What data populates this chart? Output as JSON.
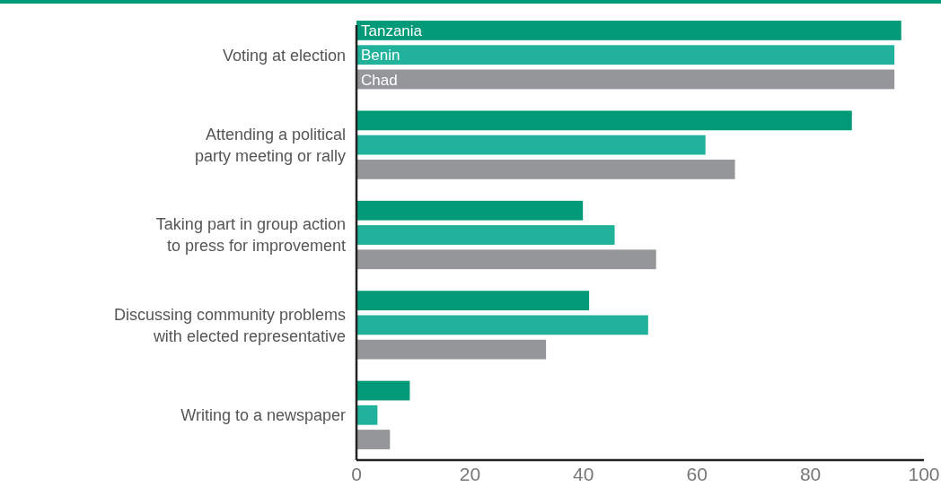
{
  "chart_data": {
    "type": "bar",
    "orientation": "horizontal",
    "categories": [
      "Voting at election",
      "Attending a political party meeting or rally",
      "Taking part in group action to press for improvement",
      "Discussing community problems with elected representative",
      "Writing to a newspaper"
    ],
    "series": [
      {
        "name": "Tanzania",
        "color": "#009a78",
        "values": [
          96,
          87.3,
          39.9,
          41,
          9.4
        ]
      },
      {
        "name": "Benin",
        "color": "#20b29a",
        "values": [
          94.8,
          61.5,
          45.5,
          51.4,
          3.7
        ]
      },
      {
        "name": "Chad",
        "color": "#959699",
        "values": [
          94.8,
          66.7,
          52.8,
          33.4,
          5.9
        ]
      }
    ],
    "xlim": [
      0,
      100
    ],
    "xticks": [
      0,
      20,
      40,
      60,
      80,
      100
    ],
    "grid": false,
    "legend": false
  }
}
